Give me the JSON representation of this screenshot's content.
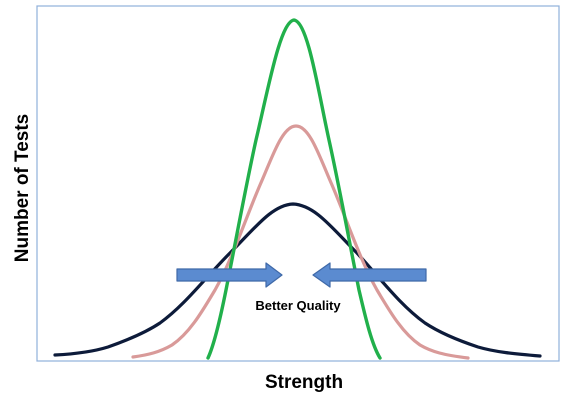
{
  "diagram": {
    "x_axis_title": "Strength",
    "y_axis_title": "Number of Tests",
    "annotation": "Better Quality",
    "curves": [
      {
        "id": "wide",
        "color": "#0d1b3a",
        "description_level": "broad spread"
      },
      {
        "id": "medium",
        "color": "#d99a99",
        "description_level": "medium spread"
      },
      {
        "id": "narrow",
        "color": "#21b04b",
        "description_level": "narrow spread"
      }
    ],
    "arrows": [
      {
        "id": "left-arrow",
        "direction": "right",
        "fill": "#5b8bd0",
        "stroke": "#3f69a8"
      },
      {
        "id": "right-arrow",
        "direction": "left",
        "fill": "#5b8bd0",
        "stroke": "#3f69a8"
      }
    ],
    "plot_border_color": "#8fb0da"
  }
}
